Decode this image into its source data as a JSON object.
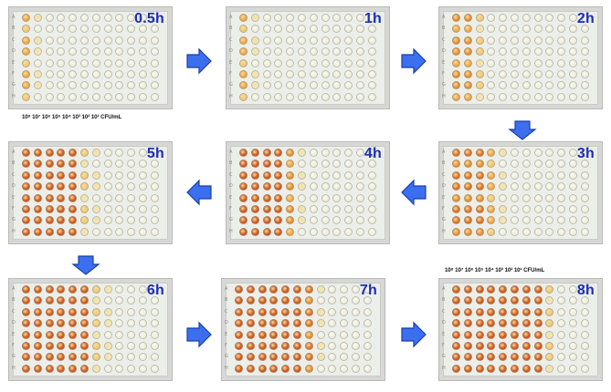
{
  "plates": [
    {
      "id": "p1",
      "time": "0.5h",
      "levels": [
        3,
        1,
        0,
        0,
        0,
        0,
        0,
        0,
        0,
        0,
        0,
        0
      ]
    },
    {
      "id": "p2",
      "time": "1h",
      "levels": [
        3,
        1,
        0,
        0,
        0,
        0,
        0,
        0,
        0,
        0,
        0,
        0
      ]
    },
    {
      "id": "p3",
      "time": "2h",
      "levels": [
        4,
        4,
        2,
        0,
        0,
        0,
        0,
        0,
        0,
        0,
        0,
        0
      ]
    },
    {
      "id": "p4",
      "time": "3h",
      "levels": [
        5,
        5,
        5,
        3,
        1,
        0,
        0,
        0,
        0,
        0,
        0,
        0
      ]
    },
    {
      "id": "p5",
      "time": "4h",
      "levels": [
        6,
        6,
        6,
        6,
        4,
        1,
        0,
        0,
        0,
        0,
        0,
        0
      ]
    },
    {
      "id": "p6",
      "time": "5h",
      "levels": [
        6,
        6,
        6,
        6,
        6,
        2,
        1,
        0,
        0,
        0,
        0,
        0
      ]
    },
    {
      "id": "p7",
      "time": "6h",
      "levels": [
        6,
        6,
        6,
        6,
        6,
        6,
        2,
        1,
        0,
        0,
        0,
        0
      ]
    },
    {
      "id": "p8",
      "time": "7h",
      "levels": [
        6,
        6,
        6,
        6,
        6,
        6,
        5,
        1,
        0,
        0,
        0,
        0
      ]
    },
    {
      "id": "p9",
      "time": "8h",
      "levels": [
        6,
        6,
        6,
        6,
        6,
        6,
        6,
        6,
        2,
        0,
        0,
        0
      ]
    }
  ],
  "row_letters": [
    "A",
    "B",
    "C",
    "D",
    "E",
    "F",
    "G",
    "H"
  ],
  "dilution_label": "10⁸ 10⁷ 10⁶ 10⁵ 10⁴ 10³ 10² 10¹ CFU/mL",
  "colors": {
    "time_label": "#1c2fb8",
    "arrow_fill": "#3c6ff0",
    "arrow_stroke": "#1a3fa8",
    "levels": [
      "#eeeede",
      "#f0e7b6",
      "#f0c873",
      "#eea545",
      "#e58d2e",
      "#dd6f1f",
      "#cf5719"
    ]
  },
  "icons": [
    "right-arrow-icon",
    "down-arrow-icon",
    "left-arrow-icon"
  ]
}
